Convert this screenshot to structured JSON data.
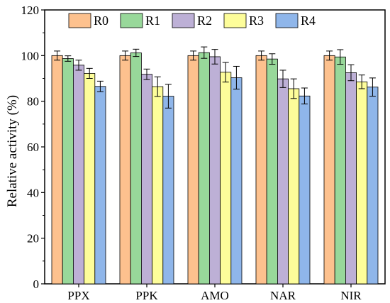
{
  "chart_data": {
    "type": "bar",
    "title": "",
    "xlabel": "",
    "ylabel": "Relative activity (%)",
    "ylim": [
      0,
      120
    ],
    "yticks": [
      0,
      20,
      40,
      60,
      80,
      100,
      120
    ],
    "grid": false,
    "legend_position": "top",
    "categories": [
      "PPX",
      "PPK",
      "AMO",
      "NAR",
      "NIR"
    ],
    "series": [
      {
        "name": "R0",
        "color": "#FDC18E",
        "values": [
          100,
          100,
          100,
          100,
          100
        ],
        "errors": [
          2.0,
          2.0,
          2.0,
          2.0,
          2.0
        ]
      },
      {
        "name": "R1",
        "color": "#98D89A",
        "values": [
          98.7,
          101.2,
          101.3,
          98.5,
          99.4
        ],
        "errors": [
          1.2,
          1.6,
          2.5,
          2.3,
          3.2
        ]
      },
      {
        "name": "R2",
        "color": "#BDB0D6",
        "values": [
          95.8,
          91.8,
          99.5,
          89.8,
          92.5
        ],
        "errors": [
          2.2,
          2.3,
          3.2,
          3.8,
          3.5
        ]
      },
      {
        "name": "R3",
        "color": "#FDFD9A",
        "values": [
          92.2,
          86.4,
          92.7,
          85.5,
          88.5
        ],
        "errors": [
          2.2,
          4.3,
          4.3,
          4.3,
          3.0
        ]
      },
      {
        "name": "R4",
        "color": "#8FB6EA",
        "values": [
          86.5,
          82.2,
          90.3,
          82.3,
          86.2
        ],
        "errors": [
          2.3,
          5.2,
          5.0,
          3.5,
          4.0
        ]
      }
    ]
  }
}
